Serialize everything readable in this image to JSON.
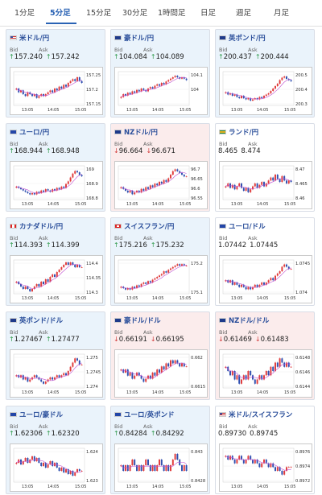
{
  "tabs": [
    {
      "label": "1分足",
      "active": false
    },
    {
      "label": "5分足",
      "active": true
    },
    {
      "label": "15分足",
      "active": false
    },
    {
      "label": "30分足",
      "active": false
    },
    {
      "label": "1時間足",
      "active": false
    },
    {
      "label": "日足",
      "active": false
    },
    {
      "label": "週足",
      "active": false
    },
    {
      "label": "月足",
      "active": false
    }
  ],
  "labels": {
    "bid": "Bid",
    "ask": "Ask"
  },
  "colors": {
    "up_bg": "#eaf3fb",
    "down_bg": "#fbecec",
    "up_arrow": "#2e9a4a",
    "down_arrow": "#d23a3a",
    "candle_up": "#e03c3c",
    "candle_down": "#2f4fb0",
    "ma": "#c050d0"
  },
  "pairs": [
    {
      "name": "米ドル/円",
      "flag": "us",
      "trend": "up",
      "bid": "157.240",
      "ask": "157.242",
      "chart_data": {
        "type": "candlestick",
        "y_ticks": [
          "157.25",
          "157.2",
          "157.15"
        ],
        "x_ticks": [
          "13:05",
          "14:05",
          "15:05"
        ],
        "ylim": [
          157.12,
          157.3
        ],
        "closes": [
          157.21,
          157.19,
          157.2,
          157.18,
          157.17,
          157.19,
          157.18,
          157.17,
          157.18,
          157.16,
          157.17,
          157.18,
          157.17,
          157.18,
          157.19,
          157.2,
          157.19,
          157.21,
          157.2,
          157.22,
          157.21,
          157.23,
          157.22,
          157.24,
          157.25,
          157.26,
          157.25,
          157.27,
          157.25,
          157.24
        ]
      }
    },
    {
      "name": "豪ドル/円",
      "flag": "au",
      "trend": "up",
      "bid": "104.084",
      "ask": "104.089",
      "chart_data": {
        "type": "candlestick",
        "y_ticks": [
          "104.1",
          "104",
          ""
        ],
        "x_ticks": [
          "13:05",
          "14:05",
          "15:05"
        ],
        "ylim": [
          103.9,
          104.14
        ],
        "closes": [
          103.96,
          103.98,
          103.97,
          103.99,
          103.98,
          104.0,
          103.99,
          104.01,
          104.0,
          104.02,
          104.01,
          104.0,
          104.02,
          104.03,
          104.02,
          104.04,
          104.05,
          104.04,
          104.06,
          104.05,
          104.07,
          104.08,
          104.09,
          104.1,
          104.11,
          104.1,
          104.09,
          104.1,
          104.09,
          104.08
        ]
      }
    },
    {
      "name": "英ポンド/円",
      "flag": "gb",
      "trend": "up",
      "bid": "200.437",
      "ask": "200.444",
      "chart_data": {
        "type": "candlestick",
        "y_ticks": [
          "200.5",
          "200.4",
          "200.3"
        ],
        "x_ticks": [
          "13:05",
          "14:05",
          "15:05"
        ],
        "ylim": [
          200.24,
          200.52
        ],
        "closes": [
          200.35,
          200.33,
          200.34,
          200.32,
          200.33,
          200.31,
          200.3,
          200.32,
          200.3,
          200.29,
          200.3,
          200.28,
          200.29,
          200.3,
          200.29,
          200.31,
          200.3,
          200.32,
          200.33,
          200.34,
          200.36,
          200.38,
          200.4,
          200.42,
          200.45,
          200.47,
          200.48,
          200.46,
          200.45,
          200.44
        ]
      }
    },
    {
      "name": "ユーロ/円",
      "flag": "eu",
      "trend": "up",
      "bid": "168.944",
      "ask": "168.948",
      "chart_data": {
        "type": "candlestick",
        "y_ticks": [
          "169",
          "168.9",
          "168.8"
        ],
        "x_ticks": [
          "13:05",
          "14:05",
          "15:05"
        ],
        "ylim": [
          168.76,
          169.02
        ],
        "closes": [
          168.86,
          168.85,
          168.84,
          168.83,
          168.82,
          168.81,
          168.8,
          168.81,
          168.8,
          168.82,
          168.81,
          168.83,
          168.82,
          168.84,
          168.83,
          168.82,
          168.84,
          168.83,
          168.85,
          168.84,
          168.86,
          168.85,
          168.88,
          168.9,
          168.93,
          168.96,
          168.98,
          168.97,
          168.95,
          168.94
        ]
      }
    },
    {
      "name": "NZドル/円",
      "flag": "nz",
      "trend": "down",
      "bid": "96.664",
      "ask": "96.671",
      "chart_data": {
        "type": "candlestick",
        "y_ticks": [
          "96.7",
          "96.65",
          "96.6",
          "96.55"
        ],
        "x_ticks": [
          "13:05",
          "14:05",
          "15:05"
        ],
        "ylim": [
          96.53,
          96.72
        ],
        "closes": [
          96.6,
          96.59,
          96.58,
          96.57,
          96.58,
          96.56,
          96.57,
          96.58,
          96.57,
          96.59,
          96.58,
          96.6,
          96.59,
          96.61,
          96.6,
          96.62,
          96.61,
          96.63,
          96.62,
          96.64,
          96.63,
          96.65,
          96.67,
          96.69,
          96.7,
          96.69,
          96.68,
          96.67,
          96.66,
          96.66
        ]
      }
    },
    {
      "name": "ランド/円",
      "flag": "za",
      "trend": "neutral",
      "bid": "8.465",
      "ask": "8.474",
      "chart_data": {
        "type": "candlestick",
        "y_ticks": [
          "8.47",
          "8.465",
          "8.46"
        ],
        "x_ticks": [
          "13:05",
          "14:05",
          "15:05"
        ],
        "ylim": [
          8.455,
          8.478
        ],
        "closes": [
          8.464,
          8.466,
          8.463,
          8.465,
          8.462,
          8.464,
          8.466,
          8.463,
          8.461,
          8.463,
          8.46,
          8.462,
          8.464,
          8.466,
          8.463,
          8.465,
          8.467,
          8.464,
          8.466,
          8.468,
          8.47,
          8.468,
          8.472,
          8.469,
          8.467,
          8.471,
          8.468,
          8.466,
          8.468,
          8.467
        ]
      }
    },
    {
      "name": "カナダドル/円",
      "flag": "ca",
      "trend": "up",
      "bid": "114.393",
      "ask": "114.399",
      "chart_data": {
        "type": "candlestick",
        "y_ticks": [
          "114.4",
          "114.35",
          "114.3"
        ],
        "x_ticks": [
          "13:05",
          "14:05",
          "15:05"
        ],
        "ylim": [
          114.28,
          114.42
        ],
        "closes": [
          114.33,
          114.32,
          114.31,
          114.3,
          114.31,
          114.3,
          114.29,
          114.3,
          114.31,
          114.32,
          114.31,
          114.33,
          114.32,
          114.34,
          114.33,
          114.35,
          114.36,
          114.35,
          114.37,
          114.38,
          114.39,
          114.4,
          114.41,
          114.4,
          114.41,
          114.4,
          114.39,
          114.4,
          114.39,
          114.39
        ]
      }
    },
    {
      "name": "スイスフラン/円",
      "flag": "ch",
      "trend": "up",
      "bid": "175.216",
      "ask": "175.232",
      "chart_data": {
        "type": "candlestick",
        "y_ticks": [
          "175.2",
          "175.1"
        ],
        "x_ticks": [
          "13:05",
          "14:05",
          "15:05"
        ],
        "ylim": [
          175.02,
          175.26
        ],
        "closes": [
          175.07,
          175.06,
          175.05,
          175.06,
          175.05,
          175.07,
          175.06,
          175.08,
          175.07,
          175.09,
          175.1,
          175.09,
          175.11,
          175.1,
          175.12,
          175.13,
          175.14,
          175.15,
          175.16,
          175.18,
          175.17,
          175.19,
          175.2,
          175.21,
          175.22,
          175.23,
          175.22,
          175.23,
          175.22,
          175.22
        ]
      }
    },
    {
      "name": "ユーロ/ドル",
      "flag": "eu",
      "trend": "neutral",
      "bid": "1.07442",
      "ask": "1.07445",
      "chart_data": {
        "type": "candlestick",
        "y_ticks": [
          "1.0745",
          "1.074"
        ],
        "x_ticks": [
          "13:05",
          "14:05",
          "15:05"
        ],
        "ylim": [
          1.0733,
          1.0748
        ],
        "closes": [
          1.0739,
          1.0738,
          1.0739,
          1.0737,
          1.0738,
          1.0737,
          1.0736,
          1.0737,
          1.0736,
          1.0735,
          1.0736,
          1.0735,
          1.0736,
          1.0737,
          1.0736,
          1.0737,
          1.0738,
          1.0737,
          1.0738,
          1.0739,
          1.074,
          1.0739,
          1.0741,
          1.0742,
          1.0743,
          1.0745,
          1.0746,
          1.0745,
          1.0744,
          1.0744
        ]
      }
    },
    {
      "name": "英ポンド/ドル",
      "flag": "gb",
      "trend": "up",
      "bid": "1.27467",
      "ask": "1.27477",
      "chart_data": {
        "type": "candlestick",
        "y_ticks": [
          "1.275",
          "1.2745",
          "1.274"
        ],
        "x_ticks": [
          "13:05",
          "14:05",
          "15:05"
        ],
        "ylim": [
          1.2736,
          1.2752
        ],
        "closes": [
          1.2742,
          1.2741,
          1.2742,
          1.274,
          1.2741,
          1.2739,
          1.274,
          1.2741,
          1.2742,
          1.2741,
          1.274,
          1.2739,
          1.2738,
          1.2739,
          1.274,
          1.2741,
          1.274,
          1.2741,
          1.2742,
          1.2741,
          1.2742,
          1.2743,
          1.2742,
          1.2744,
          1.2746,
          1.2748,
          1.275,
          1.2749,
          1.2747,
          1.2747
        ]
      }
    },
    {
      "name": "豪ドル/ドル",
      "flag": "au",
      "trend": "down",
      "bid": "0.66191",
      "ask": "0.66195",
      "chart_data": {
        "type": "candlestick",
        "y_ticks": [
          "0.662",
          "0.6615"
        ],
        "x_ticks": [
          "13:05",
          "14:05",
          "15:05"
        ],
        "ylim": [
          0.6612,
          0.6623
        ],
        "closes": [
          0.6618,
          0.6617,
          0.6618,
          0.6616,
          0.6617,
          0.6615,
          0.6616,
          0.6617,
          0.6616,
          0.6615,
          0.6614,
          0.6615,
          0.6616,
          0.6615,
          0.6617,
          0.6616,
          0.6618,
          0.6617,
          0.6619,
          0.6618,
          0.662,
          0.6619,
          0.6621,
          0.662,
          0.6621,
          0.662,
          0.6619,
          0.662,
          0.6619,
          0.6619
        ]
      }
    },
    {
      "name": "NZドル/ドル",
      "flag": "nz",
      "trend": "down",
      "bid": "0.61469",
      "ask": "0.61483",
      "chart_data": {
        "type": "candlestick",
        "y_ticks": [
          "0.6148",
          "0.6146",
          "0.6144"
        ],
        "x_ticks": [
          "13:05",
          "14:05",
          "15:05"
        ],
        "ylim": [
          0.6142,
          0.615
        ],
        "closes": [
          0.6147,
          0.6146,
          0.6145,
          0.6146,
          0.6144,
          0.6145,
          0.6143,
          0.6144,
          0.6145,
          0.6144,
          0.6146,
          0.6145,
          0.6144,
          0.6143,
          0.6144,
          0.6145,
          0.6144,
          0.6145,
          0.6146,
          0.6145,
          0.6147,
          0.6146,
          0.6148,
          0.6147,
          0.6149,
          0.6148,
          0.6147,
          0.6148,
          0.6147,
          0.6147
        ]
      }
    },
    {
      "name": "ユーロ/豪ドル",
      "flag": "eu",
      "trend": "up",
      "bid": "1.62306",
      "ask": "1.62320",
      "chart_data": {
        "type": "candlestick",
        "y_ticks": [
          "1.624",
          "1.623"
        ],
        "x_ticks": [
          "13:05",
          "14:05",
          "15:05"
        ],
        "ylim": [
          1.6224,
          1.6245
        ],
        "closes": [
          1.6236,
          1.6238,
          1.6235,
          1.6237,
          1.6239,
          1.6236,
          1.6238,
          1.624,
          1.6237,
          1.6239,
          1.6236,
          1.6234,
          1.6236,
          1.6233,
          1.6235,
          1.6237,
          1.6234,
          1.6236,
          1.6233,
          1.6231,
          1.6233,
          1.623,
          1.6232,
          1.6229,
          1.6231,
          1.6228,
          1.623,
          1.6232,
          1.6231,
          1.6231
        ]
      }
    },
    {
      "name": "ユーロ/英ポンド",
      "flag": "eu",
      "trend": "up",
      "bid": "0.84284",
      "ask": "0.84292",
      "chart_data": {
        "type": "candlestick",
        "y_ticks": [
          "0.843",
          "0.8428"
        ],
        "x_ticks": [
          "13:05",
          "14:05",
          "15:05"
        ],
        "ylim": [
          0.8426,
          0.8432
        ],
        "closes": [
          0.8429,
          0.8428,
          0.8429,
          0.8428,
          0.8429,
          0.843,
          0.8429,
          0.8428,
          0.8429,
          0.8428,
          0.8429,
          0.843,
          0.8429,
          0.8428,
          0.8429,
          0.8428,
          0.8429,
          0.843,
          0.8429,
          0.8428,
          0.8429,
          0.8428,
          0.8429,
          0.843,
          0.8431,
          0.843,
          0.8429,
          0.8428,
          0.8429,
          0.8428
        ]
      }
    },
    {
      "name": "米ドル/スイスフラン",
      "flag": "us",
      "trend": "neutral",
      "bid": "0.89730",
      "ask": "0.89745",
      "chart_data": {
        "type": "candlestick",
        "y_ticks": [
          "0.8976",
          "0.8974",
          "0.8972"
        ],
        "x_ticks": [
          "13:05",
          "14:05",
          "15:05"
        ],
        "ylim": [
          0.8969,
          0.8978
        ],
        "closes": [
          0.8976,
          0.8975,
          0.8976,
          0.8975,
          0.8974,
          0.8975,
          0.8976,
          0.8975,
          0.8974,
          0.8975,
          0.8976,
          0.8975,
          0.8974,
          0.8975,
          0.8974,
          0.8973,
          0.8974,
          0.8975,
          0.8974,
          0.8973,
          0.8974,
          0.8973,
          0.8972,
          0.8973,
          0.8972,
          0.8971,
          0.8972,
          0.8973,
          0.8973,
          0.8973
        ]
      }
    }
  ]
}
